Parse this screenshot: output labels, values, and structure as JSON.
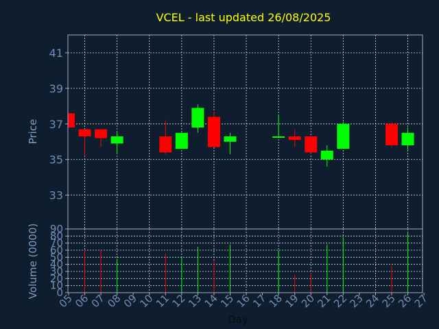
{
  "chart_data": {
    "type": "candlestick",
    "title": "VCEL - last updated 26/08/2025",
    "colors": {
      "background": "#0f1e2e",
      "title": "#ffff00",
      "axis_text": "#7f9fbf",
      "tick_text": "#6f8fb8",
      "xlabel": "#0a0a0a",
      "grid": "#ffffff",
      "frame": "#9fb0c4",
      "up": "#00ff00",
      "down": "#ff0000"
    },
    "xlabel": "Day",
    "x_ticks": [
      "05",
      "06",
      "07",
      "08",
      "09",
      "10",
      "11",
      "12",
      "13",
      "14",
      "15",
      "16",
      "17",
      "18",
      "19",
      "20",
      "21",
      "22",
      "23",
      "24",
      "25",
      "26",
      "27"
    ],
    "price_panel": {
      "ylabel": "Price",
      "ylim": [
        31.1,
        42.0
      ],
      "y_ticks": [
        33,
        35,
        37,
        39,
        41
      ],
      "grid": true
    },
    "volume_panel": {
      "ylabel": "Volume (0000)",
      "ylim": [
        0,
        90
      ],
      "y_ticks": [
        0,
        10,
        20,
        30,
        40,
        50,
        60,
        70,
        80,
        90
      ],
      "grid": true
    },
    "candles": [
      {
        "day": "05",
        "open": 37.6,
        "close": 36.8,
        "high": 37.6,
        "low": 36.8,
        "volume": 0
      },
      {
        "day": "06",
        "open": 36.7,
        "close": 36.3,
        "high": 36.7,
        "low": 35.2,
        "volume": 60
      },
      {
        "day": "07",
        "open": 36.7,
        "close": 36.2,
        "high": 36.7,
        "low": 35.7,
        "volume": 60
      },
      {
        "day": "08",
        "open": 35.9,
        "close": 36.3,
        "high": 36.6,
        "low": 35.3,
        "volume": 48
      },
      {
        "day": "11",
        "open": 36.3,
        "close": 35.4,
        "high": 37.2,
        "low": 35.3,
        "volume": 55
      },
      {
        "day": "12",
        "open": 35.6,
        "close": 36.5,
        "high": 36.5,
        "low": 35.6,
        "volume": 50
      },
      {
        "day": "13",
        "open": 36.8,
        "close": 37.9,
        "high": 38.1,
        "low": 36.5,
        "volume": 65
      },
      {
        "day": "14",
        "open": 37.4,
        "close": 35.7,
        "high": 37.7,
        "low": 35.7,
        "volume": 45
      },
      {
        "day": "15",
        "open": 36.0,
        "close": 36.3,
        "high": 36.5,
        "low": 35.3,
        "volume": 68
      },
      {
        "day": "18",
        "open": 36.3,
        "close": 36.3,
        "high": 37.5,
        "low": 36.2,
        "volume": 60
      },
      {
        "day": "19",
        "open": 36.3,
        "close": 36.1,
        "high": 36.7,
        "low": 35.7,
        "volume": 25
      },
      {
        "day": "20",
        "open": 36.3,
        "close": 35.4,
        "high": 36.3,
        "low": 35.3,
        "volume": 28
      },
      {
        "day": "21",
        "open": 35.0,
        "close": 35.5,
        "high": 35.8,
        "low": 34.6,
        "volume": 68
      },
      {
        "day": "22",
        "open": 35.6,
        "close": 37.0,
        "high": 37.1,
        "low": 35.6,
        "volume": 78
      },
      {
        "day": "25",
        "open": 37.0,
        "close": 35.8,
        "high": 37.1,
        "low": 35.7,
        "volume": 38
      },
      {
        "day": "26",
        "open": 35.8,
        "close": 36.5,
        "high": 36.8,
        "low": 35.5,
        "volume": 85
      }
    ]
  }
}
